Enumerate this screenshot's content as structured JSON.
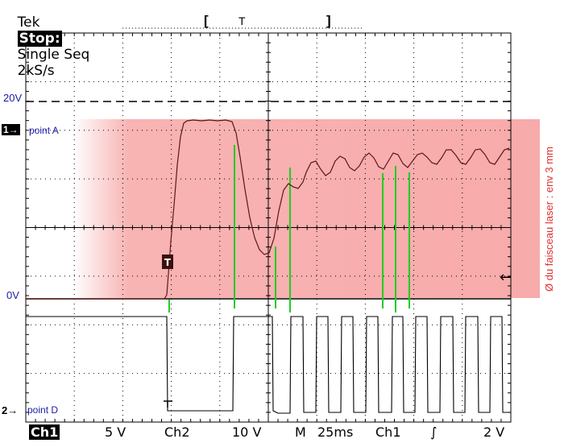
{
  "header": {
    "brand": "Tek",
    "state": "Stop:",
    "mode": "Single Seq",
    "rate": "2kS/s",
    "trigger_marker": "T",
    "bracket_left": "[",
    "bracket_right": "]"
  },
  "levels": {
    "level_20v": "20V",
    "level_0v": "0V"
  },
  "channels": {
    "ch1_marker": "1→",
    "ch1_point": "point A",
    "ch2_marker": "2→",
    "ch2_point": "point D",
    "trigger_label": "T"
  },
  "annotation": {
    "beam_text": "Ø du faisceau laser : env 3 mm",
    "arrow": "←",
    "band_color": "#f7a6a6"
  },
  "footer": {
    "ch1": "Ch1",
    "ch1_scale": "5 V",
    "ch2": "Ch2",
    "ch2_scale": "10 V",
    "timebase_label": "M",
    "timebase": "25ms",
    "trigger_source": "Ch1",
    "trigger_slope": "∫",
    "trigger_level": "2 V"
  },
  "colors": {
    "trace": "#5a1818",
    "channel_text": "#1a1aa8",
    "annotation_text": "#e03030",
    "marker_green": "#22cc22"
  }
}
